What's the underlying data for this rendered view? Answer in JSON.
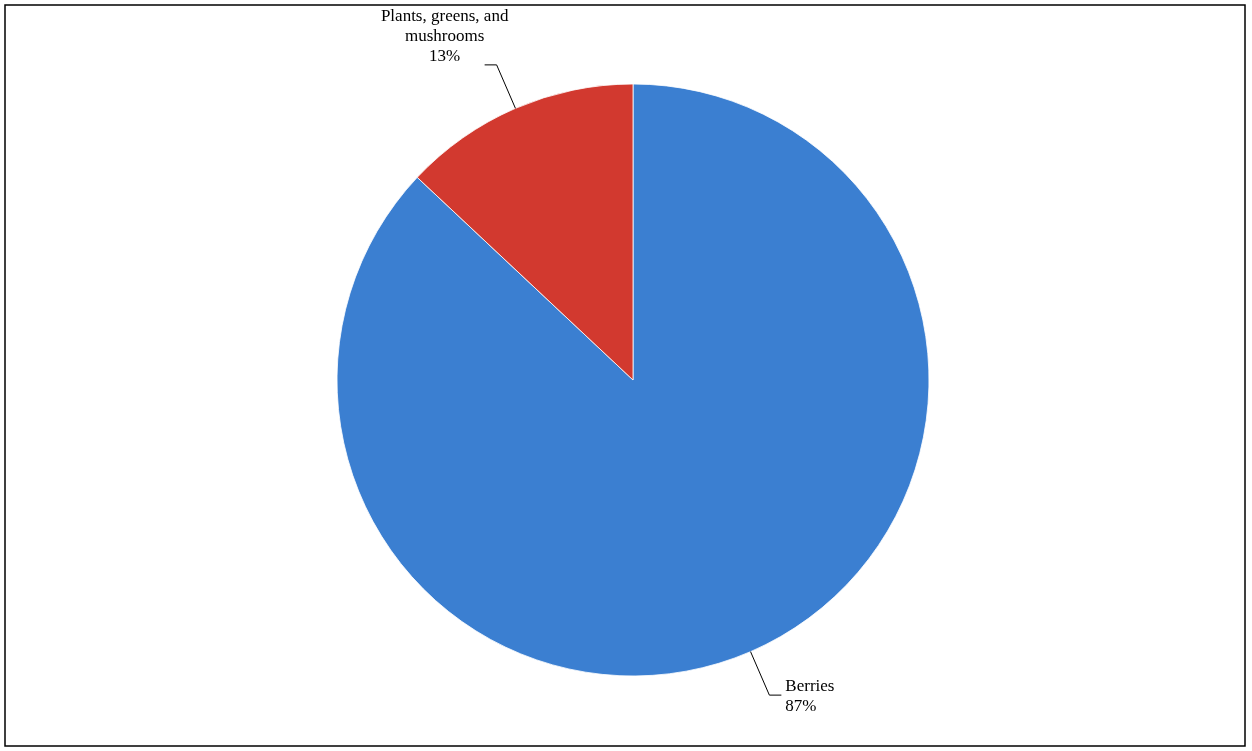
{
  "chart_data": {
    "type": "pie",
    "categories": [
      "Berries",
      "Plants, greens, and mushrooms"
    ],
    "values": [
      87,
      13
    ],
    "colors": [
      "#3b7fd1",
      "#d2392f"
    ],
    "value_labels": [
      "87%",
      "13%"
    ]
  }
}
